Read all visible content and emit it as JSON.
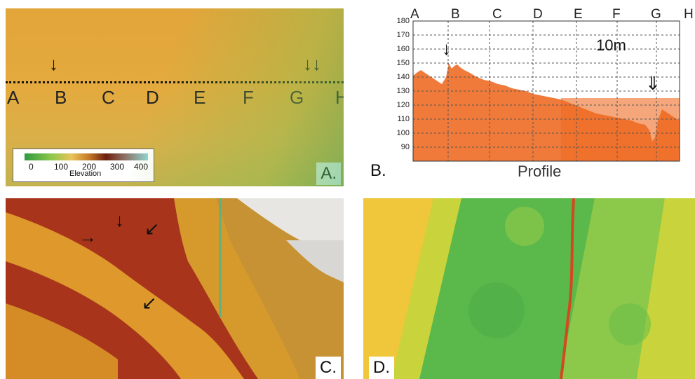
{
  "panel_a": {
    "section_letters": [
      "A",
      "B",
      "C",
      "D",
      "E",
      "F",
      "G",
      "H"
    ],
    "legend_ticks": [
      "0",
      "100",
      "200",
      "300",
      "400"
    ],
    "legend_title": "Elevation",
    "label": "A."
  },
  "panel_b": {
    "label": "B.",
    "title": "Profile",
    "scale_label": "10m",
    "y_ticks": [
      "180",
      "170",
      "160",
      "150",
      "140",
      "130",
      "120",
      "110",
      "100",
      "90"
    ],
    "column_letters": [
      "A",
      "B",
      "C",
      "D",
      "E",
      "F",
      "G",
      "H"
    ]
  },
  "panel_c": {
    "label": "C."
  },
  "panel_d": {
    "label": "D."
  },
  "colors": {
    "profile_fill": "#ef7a3a",
    "profile_fill_dark": "#ee6a22"
  }
}
